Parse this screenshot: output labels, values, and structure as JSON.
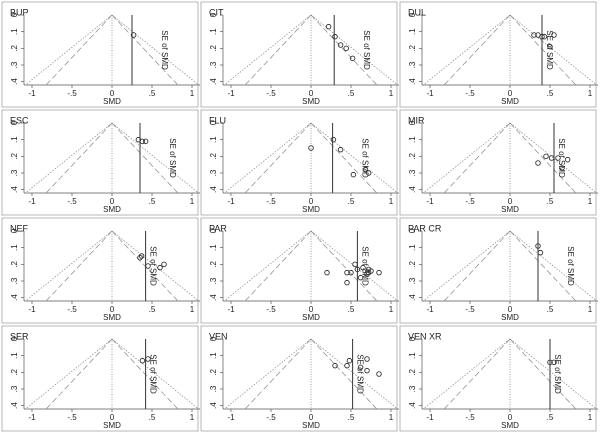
{
  "chart_data": [
    {
      "type": "scatter",
      "title": "BUP",
      "xlabel": "SMD",
      "ylabel": "SE of SMD",
      "x": [
        0.27
      ],
      "values": [
        0.12
      ],
      "pooled": 0.25,
      "xlim": [
        -1.1,
        1.1
      ],
      "ylim": [
        0,
        0.42
      ],
      "y_reversed": true,
      "xticks": [
        -1,
        {
          "value": -0.5,
          "label": "-.5"
        },
        0,
        {
          "value": 0.5,
          "label": ".5"
        },
        1
      ],
      "yticks": [
        0,
        {
          "value": 0.1,
          "label": ".1"
        },
        {
          "value": 0.2,
          "label": ".2"
        },
        {
          "value": 0.3,
          "label": ".3"
        },
        {
          "value": 0.4,
          "label": ".4"
        }
      ],
      "color": "#333333"
    },
    {
      "type": "scatter",
      "title": "CIT",
      "xlabel": "SMD",
      "ylabel": "SE of SMD",
      "x": [
        0.22,
        0.3,
        0.37,
        0.44,
        0.52
      ],
      "values": [
        0.07,
        0.13,
        0.18,
        0.2,
        0.26
      ],
      "pooled": 0.29,
      "xlim": [
        -1.1,
        1.1
      ],
      "ylim": [
        0,
        0.42
      ],
      "y_reversed": true,
      "xticks": [
        -1,
        {
          "value": -0.5,
          "label": "-.5"
        },
        0,
        {
          "value": 0.5,
          "label": ".5"
        },
        1
      ],
      "yticks": [
        0,
        {
          "value": 0.1,
          "label": ".1"
        },
        {
          "value": 0.2,
          "label": ".2"
        },
        {
          "value": 0.3,
          "label": ".3"
        },
        {
          "value": 0.4,
          "label": ".4"
        }
      ],
      "color": "#333333"
    },
    {
      "type": "scatter",
      "title": "DUL",
      "xlabel": "SMD",
      "ylabel": "SE of SMD",
      "x": [
        0.3,
        0.35,
        0.4,
        0.43,
        0.55,
        0.5
      ],
      "values": [
        0.12,
        0.12,
        0.13,
        0.13,
        0.12,
        0.19
      ],
      "pooled": 0.4,
      "xlim": [
        -1.1,
        1.1
      ],
      "ylim": [
        0,
        0.42
      ],
      "y_reversed": true,
      "xticks": [
        -1,
        {
          "value": -0.5,
          "label": "-.5"
        },
        0,
        {
          "value": 0.5,
          "label": ".5"
        },
        1
      ],
      "yticks": [
        0,
        {
          "value": 0.1,
          "label": ".1"
        },
        {
          "value": 0.2,
          "label": ".2"
        },
        {
          "value": 0.3,
          "label": ".3"
        },
        {
          "value": 0.4,
          "label": ".4"
        }
      ],
      "color": "#333333"
    },
    {
      "type": "scatter",
      "title": "ESC",
      "xlabel": "SMD",
      "ylabel": "SE of SMD",
      "x": [
        0.33,
        0.38,
        0.42
      ],
      "values": [
        0.1,
        0.11,
        0.11
      ],
      "pooled": 0.35,
      "xlim": [
        -1.1,
        1.1
      ],
      "ylim": [
        0,
        0.42
      ],
      "y_reversed": true,
      "xticks": [
        -1,
        {
          "value": -0.5,
          "label": "-.5"
        },
        0,
        {
          "value": 0.5,
          "label": ".5"
        },
        1
      ],
      "yticks": [
        0,
        {
          "value": 0.1,
          "label": ".1"
        },
        {
          "value": 0.2,
          "label": ".2"
        },
        {
          "value": 0.3,
          "label": ".3"
        },
        {
          "value": 0.4,
          "label": ".4"
        }
      ],
      "color": "#333333"
    },
    {
      "type": "scatter",
      "title": "FLU",
      "xlabel": "SMD",
      "ylabel": "SE of SMD",
      "x": [
        0,
        0.28,
        0.37,
        0.53,
        0.68,
        0.72
      ],
      "values": [
        0.15,
        0.1,
        0.16,
        0.31,
        0.28,
        0.3
      ],
      "pooled": 0.27,
      "xlim": [
        -1.1,
        1.1
      ],
      "ylim": [
        0,
        0.42
      ],
      "y_reversed": true,
      "xticks": [
        -1,
        {
          "value": -0.5,
          "label": "-.5"
        },
        0,
        {
          "value": 0.5,
          "label": ".5"
        },
        1
      ],
      "yticks": [
        0,
        {
          "value": 0.1,
          "label": ".1"
        },
        {
          "value": 0.2,
          "label": ".2"
        },
        {
          "value": 0.3,
          "label": ".3"
        },
        {
          "value": 0.4,
          "label": ".4"
        }
      ],
      "color": "#333333"
    },
    {
      "type": "scatter",
      "title": "MIR",
      "xlabel": "SMD",
      "ylabel": "SE of SMD",
      "x": [
        0.35,
        0.45,
        0.52,
        0.6,
        0.65,
        0.72
      ],
      "values": [
        0.24,
        0.2,
        0.21,
        0.21,
        0.27,
        0.22
      ],
      "pooled": 0.55,
      "xlim": [
        -1.1,
        1.1
      ],
      "ylim": [
        0,
        0.42
      ],
      "y_reversed": true,
      "xticks": [
        -1,
        {
          "value": -0.5,
          "label": "-.5"
        },
        0,
        {
          "value": 0.5,
          "label": ".5"
        },
        1
      ],
      "yticks": [
        0,
        {
          "value": 0.1,
          "label": ".1"
        },
        {
          "value": 0.2,
          "label": ".2"
        },
        {
          "value": 0.3,
          "label": ".3"
        },
        {
          "value": 0.4,
          "label": ".4"
        }
      ],
      "color": "#333333"
    },
    {
      "type": "scatter",
      "title": "NEF",
      "xlabel": "SMD",
      "ylabel": "SE of SMD",
      "x": [
        0.35,
        0.37,
        0.45,
        0.6,
        0.65
      ],
      "values": [
        0.16,
        0.15,
        0.21,
        0.22,
        0.2
      ],
      "pooled": 0.42,
      "xlim": [
        -1.1,
        1.1
      ],
      "ylim": [
        0,
        0.42
      ],
      "y_reversed": true,
      "xticks": [
        -1,
        {
          "value": -0.5,
          "label": "-.5"
        },
        0,
        {
          "value": 0.5,
          "label": ".5"
        },
        1
      ],
      "yticks": [
        0,
        {
          "value": 0.1,
          "label": ".1"
        },
        {
          "value": 0.2,
          "label": ".2"
        },
        {
          "value": 0.3,
          "label": ".3"
        },
        {
          "value": 0.4,
          "label": ".4"
        }
      ],
      "color": "#333333"
    },
    {
      "type": "scatter",
      "title": "PAR",
      "xlabel": "SMD",
      "ylabel": "SE of SMD",
      "x": [
        0.2,
        0.45,
        0.5,
        0.45,
        0.55,
        0.58,
        0.62,
        0.65,
        0.7,
        0.72,
        0.75,
        0.85,
        0.72
      ],
      "values": [
        0.25,
        0.25,
        0.25,
        0.31,
        0.2,
        0.23,
        0.28,
        0.22,
        0.26,
        0.23,
        0.24,
        0.25,
        0.25
      ],
      "pooled": 0.58,
      "xlim": [
        -1.1,
        1.1
      ],
      "ylim": [
        0,
        0.42
      ],
      "y_reversed": true,
      "xticks": [
        -1,
        {
          "value": -0.5,
          "label": "-.5"
        },
        0,
        {
          "value": 0.5,
          "label": ".5"
        },
        1
      ],
      "yticks": [
        0,
        {
          "value": 0.1,
          "label": ".1"
        },
        {
          "value": 0.2,
          "label": ".2"
        },
        {
          "value": 0.3,
          "label": ".3"
        },
        {
          "value": 0.4,
          "label": ".4"
        }
      ],
      "color": "#333333"
    },
    {
      "type": "scatter",
      "title": "PAR CR",
      "xlabel": "SMD",
      "ylabel": "SE of SMD",
      "x": [
        0.35,
        0.38
      ],
      "values": [
        0.09,
        0.13
      ],
      "pooled": 0.35,
      "xlim": [
        -1.1,
        1.1
      ],
      "ylim": [
        0,
        0.42
      ],
      "y_reversed": true,
      "xticks": [
        -1,
        {
          "value": -0.5,
          "label": "-.5"
        },
        0,
        {
          "value": 0.5,
          "label": ".5"
        },
        1
      ],
      "yticks": [
        0,
        {
          "value": 0.1,
          "label": ".1"
        },
        {
          "value": 0.2,
          "label": ".2"
        },
        {
          "value": 0.3,
          "label": ".3"
        },
        {
          "value": 0.4,
          "label": ".4"
        }
      ],
      "color": "#333333"
    },
    {
      "type": "scatter",
      "title": "SER",
      "xlabel": "SMD",
      "ylabel": "SE of SMD",
      "x": [
        0.38,
        0.45
      ],
      "values": [
        0.13,
        0.12
      ],
      "pooled": 0.42,
      "xlim": [
        -1.1,
        1.1
      ],
      "ylim": [
        0,
        0.42
      ],
      "y_reversed": true,
      "xticks": [
        -1,
        {
          "value": -0.5,
          "label": "-.5"
        },
        0,
        {
          "value": 0.5,
          "label": ".5"
        },
        1
      ],
      "yticks": [
        0,
        {
          "value": 0.1,
          "label": ".1"
        },
        {
          "value": 0.2,
          "label": ".2"
        },
        {
          "value": 0.3,
          "label": ".3"
        },
        {
          "value": 0.4,
          "label": ".4"
        }
      ],
      "color": "#333333"
    },
    {
      "type": "scatter",
      "title": "VEN",
      "xlabel": "SMD",
      "ylabel": "SE of SMD",
      "x": [
        0.3,
        0.45,
        0.48,
        0.62,
        0.7,
        0.7,
        0.85
      ],
      "values": [
        0.16,
        0.16,
        0.13,
        0.17,
        0.12,
        0.19,
        0.21
      ],
      "pooled": 0.52,
      "xlim": [
        -1.1,
        1.1
      ],
      "ylim": [
        0,
        0.42
      ],
      "y_reversed": true,
      "xticks": [
        -1,
        {
          "value": -0.5,
          "label": "-.5"
        },
        0,
        {
          "value": 0.5,
          "label": ".5"
        },
        1
      ],
      "yticks": [
        0,
        {
          "value": 0.1,
          "label": ".1"
        },
        {
          "value": 0.2,
          "label": ".2"
        },
        {
          "value": 0.3,
          "label": ".3"
        },
        {
          "value": 0.4,
          "label": ".4"
        }
      ],
      "color": "#333333"
    },
    {
      "type": "scatter",
      "title": "VEN XR",
      "xlabel": "SMD",
      "ylabel": "SE of SMD",
      "x": [
        0.5,
        0.55
      ],
      "values": [
        0.14,
        0.14
      ],
      "pooled": 0.5,
      "xlim": [
        -1.1,
        1.1
      ],
      "ylim": [
        0,
        0.42
      ],
      "y_reversed": true,
      "xticks": [
        -1,
        {
          "value": -0.5,
          "label": "-.5"
        },
        0,
        {
          "value": 0.5,
          "label": ".5"
        },
        1
      ],
      "yticks": [
        0,
        {
          "value": 0.1,
          "label": ".1"
        },
        {
          "value": 0.2,
          "label": ".2"
        },
        {
          "value": 0.3,
          "label": ".3"
        },
        {
          "value": 0.4,
          "label": ".4"
        }
      ],
      "color": "#333333"
    }
  ]
}
